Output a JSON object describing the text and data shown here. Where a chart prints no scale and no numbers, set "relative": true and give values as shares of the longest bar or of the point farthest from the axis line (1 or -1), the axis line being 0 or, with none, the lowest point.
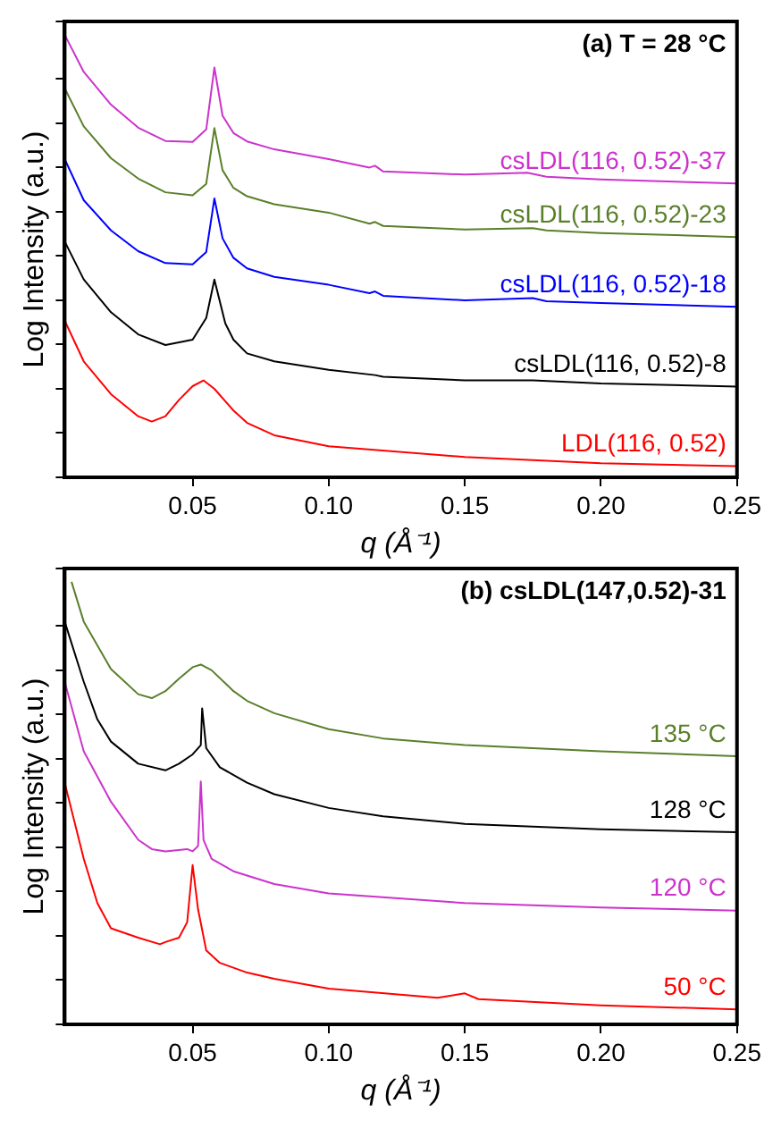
{
  "chart_data": [
    {
      "type": "line",
      "title": "(a) T = 28 °C",
      "xlabel": "q (Å⁻¹)",
      "ylabel": "Log Intensity (a.u.)",
      "relative": true,
      "xlim": [
        0.003,
        0.25
      ],
      "xticks": [
        {
          "value": 0.05,
          "label": "0.05"
        },
        {
          "value": 0.1,
          "label": "0.10"
        },
        {
          "value": 0.15,
          "label": "0.15"
        },
        {
          "value": 0.2,
          "label": "0.20"
        },
        {
          "value": 0.25,
          "label": "0.25"
        }
      ],
      "tick_labels": "x",
      "legend": false,
      "grid": false,
      "marker": "none",
      "line_style": "solid",
      "series": [
        {
          "name": "csLDL(116, 0.52)-37",
          "color": "#cc33cc",
          "x": [
            0.003,
            0.01,
            0.02,
            0.03,
            0.04,
            0.05,
            0.055,
            0.058,
            0.061,
            0.065,
            0.07,
            0.08,
            0.1,
            0.115,
            0.117,
            0.12,
            0.15,
            0.173,
            0.18,
            0.2,
            0.25
          ],
          "values": [
            1.0,
            0.916,
            0.842,
            0.79,
            0.76,
            0.758,
            0.786,
            0.926,
            0.817,
            0.778,
            0.759,
            0.741,
            0.719,
            0.7,
            0.704,
            0.691,
            0.684,
            0.688,
            0.679,
            0.673,
            0.664
          ]
        },
        {
          "name": "csLDL(116, 0.52)-23",
          "color": "#5a7f2a",
          "x": [
            0.003,
            0.01,
            0.02,
            0.03,
            0.04,
            0.05,
            0.055,
            0.058,
            0.061,
            0.065,
            0.07,
            0.08,
            0.1,
            0.115,
            0.117,
            0.12,
            0.15,
            0.175,
            0.18,
            0.2,
            0.25
          ],
          "values": [
            0.879,
            0.793,
            0.721,
            0.675,
            0.644,
            0.637,
            0.663,
            0.789,
            0.694,
            0.654,
            0.635,
            0.617,
            0.598,
            0.573,
            0.577,
            0.568,
            0.56,
            0.563,
            0.558,
            0.552,
            0.543
          ]
        },
        {
          "name": "csLDL(116, 0.52)-18",
          "color": "#0000ff",
          "x": [
            0.003,
            0.01,
            0.02,
            0.03,
            0.04,
            0.05,
            0.055,
            0.058,
            0.061,
            0.065,
            0.07,
            0.08,
            0.1,
            0.115,
            0.117,
            0.12,
            0.15,
            0.175,
            0.18,
            0.2,
            0.25
          ],
          "values": [
            0.719,
            0.626,
            0.558,
            0.511,
            0.484,
            0.481,
            0.509,
            0.63,
            0.54,
            0.496,
            0.472,
            0.453,
            0.435,
            0.416,
            0.42,
            0.41,
            0.4,
            0.405,
            0.398,
            0.394,
            0.385
          ]
        },
        {
          "name": "csLDL(116, 0.52)-8",
          "color": "#000000",
          "x": [
            0.003,
            0.01,
            0.02,
            0.03,
            0.04,
            0.05,
            0.055,
            0.058,
            0.062,
            0.065,
            0.07,
            0.08,
            0.1,
            0.117,
            0.12,
            0.15,
            0.175,
            0.2,
            0.25
          ],
          "values": [
            0.533,
            0.447,
            0.373,
            0.323,
            0.299,
            0.311,
            0.36,
            0.447,
            0.348,
            0.311,
            0.28,
            0.262,
            0.243,
            0.231,
            0.227,
            0.219,
            0.219,
            0.212,
            0.205
          ]
        },
        {
          "name": "LDL(116, 0.52)",
          "color": "#ff0000",
          "x": [
            0.003,
            0.01,
            0.02,
            0.03,
            0.035,
            0.04,
            0.045,
            0.05,
            0.054,
            0.058,
            0.065,
            0.07,
            0.08,
            0.1,
            0.15,
            0.2,
            0.25
          ],
          "values": [
            0.354,
            0.262,
            0.188,
            0.138,
            0.126,
            0.138,
            0.175,
            0.206,
            0.219,
            0.2,
            0.151,
            0.123,
            0.095,
            0.07,
            0.046,
            0.032,
            0.025
          ]
        }
      ]
    },
    {
      "type": "line",
      "title": "(b) csLDL(147,0.52)-31",
      "xlabel": "q (Å⁻¹)",
      "ylabel": "Log Intensity (a.u.)",
      "relative": true,
      "xlim": [
        0.003,
        0.25
      ],
      "xticks": [
        {
          "value": 0.05,
          "label": "0.05"
        },
        {
          "value": 0.1,
          "label": "0.10"
        },
        {
          "value": 0.15,
          "label": "0.15"
        },
        {
          "value": 0.2,
          "label": "0.20"
        },
        {
          "value": 0.25,
          "label": "0.25"
        }
      ],
      "tick_labels": "x",
      "legend": false,
      "grid": false,
      "marker": "none",
      "line_style": "solid",
      "series": [
        {
          "name": "135 °C",
          "color": "#5a7f2a",
          "x": [
            0.0055,
            0.01,
            0.02,
            0.03,
            0.035,
            0.04,
            0.045,
            0.05,
            0.053,
            0.057,
            0.065,
            0.07,
            0.08,
            0.1,
            0.12,
            0.15,
            0.2,
            0.25
          ],
          "values": [
            1.0,
            0.91,
            0.803,
            0.746,
            0.737,
            0.753,
            0.781,
            0.807,
            0.813,
            0.8,
            0.753,
            0.731,
            0.703,
            0.667,
            0.646,
            0.631,
            0.617,
            0.606
          ]
        },
        {
          "name": "128 °C",
          "color": "#000000",
          "x": [
            0.003,
            0.01,
            0.015,
            0.02,
            0.03,
            0.04,
            0.045,
            0.05,
            0.053,
            0.0535,
            0.055,
            0.06,
            0.07,
            0.08,
            0.1,
            0.12,
            0.15,
            0.2,
            0.25
          ],
          "values": [
            0.91,
            0.774,
            0.689,
            0.639,
            0.589,
            0.574,
            0.589,
            0.61,
            0.631,
            0.714,
            0.624,
            0.581,
            0.546,
            0.52,
            0.489,
            0.47,
            0.453,
            0.441,
            0.434
          ]
        },
        {
          "name": "120 °C",
          "color": "#cc33cc",
          "x": [
            0.003,
            0.01,
            0.02,
            0.03,
            0.035,
            0.04,
            0.048,
            0.05,
            0.052,
            0.053,
            0.054,
            0.057,
            0.065,
            0.08,
            0.1,
            0.15,
            0.2,
            0.25
          ],
          "values": [
            0.774,
            0.617,
            0.503,
            0.417,
            0.396,
            0.391,
            0.396,
            0.391,
            0.403,
            0.549,
            0.417,
            0.374,
            0.346,
            0.317,
            0.296,
            0.274,
            0.264,
            0.257
          ]
        },
        {
          "name": "50 °C",
          "color": "#ff0000",
          "x": [
            0.003,
            0.01,
            0.015,
            0.02,
            0.03,
            0.038,
            0.04,
            0.045,
            0.048,
            0.05,
            0.052,
            0.055,
            0.06,
            0.07,
            0.08,
            0.1,
            0.14,
            0.15,
            0.155,
            0.2,
            0.25
          ],
          "values": [
            0.546,
            0.374,
            0.274,
            0.217,
            0.196,
            0.181,
            0.186,
            0.196,
            0.231,
            0.36,
            0.26,
            0.167,
            0.139,
            0.117,
            0.103,
            0.081,
            0.06,
            0.07,
            0.057,
            0.043,
            0.034
          ]
        }
      ]
    }
  ]
}
